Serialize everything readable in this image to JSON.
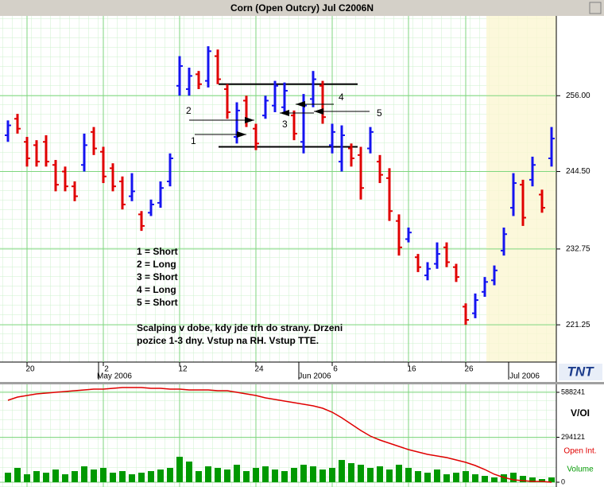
{
  "chart_data": [
    {
      "type": "ohlc",
      "title": "Corn (Open Outcry) Jul C2006N",
      "categories": [
        null,
        null,
        "20",
        null,
        null,
        null,
        null,
        null,
        null,
        null,
        "2",
        null,
        null,
        null,
        null,
        null,
        null,
        null,
        "12",
        null,
        null,
        null,
        null,
        null,
        null,
        null,
        "24",
        null,
        null,
        null,
        null,
        null,
        null,
        null,
        "6",
        null,
        null,
        null,
        null,
        null,
        null,
        null,
        "16",
        null,
        null,
        null,
        null,
        null,
        "26",
        null,
        null,
        null,
        null,
        null,
        null,
        null,
        null,
        null
      ],
      "months": [
        "May 2006",
        "Jun 2006",
        "Jul 2006"
      ],
      "open": [
        250,
        252.5,
        249,
        248.5,
        249,
        245.5,
        244.5,
        242.25,
        245.5,
        250.5,
        247.5,
        245,
        243,
        240.75,
        238,
        238.25,
        239.75,
        243,
        257.5,
        257,
        259.25,
        258.25,
        262,
        257,
        249.75,
        255.25,
        251,
        253,
        254.5,
        254.25,
        253,
        249,
        255.5,
        257.5,
        248.5,
        246,
        248,
        247,
        248,
        246,
        243.5,
        237,
        234.25,
        231.5,
        228.75,
        230.5,
        233,
        230,
        224,
        223,
        226.25,
        228,
        232.5,
        239,
        242.5,
        243.25,
        241,
        246.5
      ],
      "high": [
        252.25,
        253.25,
        249.75,
        249.25,
        250,
        246.25,
        245.25,
        243,
        250.25,
        251.25,
        248.25,
        245.75,
        243.75,
        244.25,
        238.5,
        240.25,
        243,
        247.25,
        262,
        260.25,
        259.75,
        263.5,
        263,
        257.75,
        255,
        256,
        251.75,
        256,
        258.25,
        258,
        253.75,
        256.25,
        259.75,
        258.25,
        251.75,
        251.5,
        248.75,
        248.25,
        251.25,
        247,
        245,
        238,
        236,
        232,
        230.75,
        233.75,
        233.75,
        230.5,
        224.5,
        226,
        228.5,
        230.25,
        236,
        244.25,
        243.25,
        246.75,
        241.75,
        251.25
      ],
      "low": [
        249,
        250.25,
        245.25,
        245.25,
        245.25,
        241.5,
        241.5,
        240,
        244.5,
        247,
        242.75,
        241.5,
        238.75,
        240,
        235.5,
        237.75,
        239,
        242.25,
        256,
        256,
        257,
        257.25,
        257.75,
        252.5,
        248.75,
        251.25,
        247.75,
        252.5,
        253.5,
        253.5,
        249.25,
        247.25,
        254.25,
        251.75,
        247.25,
        244.5,
        245.25,
        240.25,
        247.25,
        242.75,
        237,
        231.75,
        233.75,
        229.25,
        228,
        229.75,
        230,
        227.75,
        221.25,
        222.25,
        225.5,
        227.25,
        231.75,
        237.75,
        236.25,
        242.25,
        238.25,
        245.25
      ],
      "close": [
        251.5,
        251,
        246.5,
        246,
        246,
        242.5,
        242.25,
        240.75,
        248.5,
        248,
        243.75,
        242.25,
        239.5,
        241.5,
        236.25,
        239.5,
        242,
        246.5,
        260.5,
        259,
        257.75,
        262.75,
        258.5,
        253.5,
        253.75,
        252.25,
        248.75,
        255.25,
        257.5,
        256.75,
        250.25,
        254.5,
        258.5,
        252.75,
        250.5,
        250,
        246.5,
        242,
        250.5,
        244,
        238.5,
        233,
        235.25,
        230,
        229.75,
        232,
        230.75,
        228.5,
        222,
        225,
        227.75,
        229.5,
        235,
        242.75,
        237.5,
        245.5,
        239,
        249.5
      ],
      "up_color": "#1414f0",
      "down_color": "#e00000",
      "ylim": [
        215.6,
        268.1
      ],
      "yticks": [
        {
          "value": 221.25,
          "label": "221.25"
        },
        {
          "value": 232.75,
          "label": "232.75"
        },
        {
          "value": 244.5,
          "label": "244.50"
        },
        {
          "value": 256,
          "label": "256.00"
        }
      ],
      "grid": true,
      "levels": [
        257.75,
        248.25
      ],
      "arrow_labels": [
        "1",
        "2",
        "3",
        "4",
        "5"
      ],
      "notes": [
        "1 = Short",
        "2 = Long",
        "3 = Short",
        "4 = Long",
        "5 = Short"
      ],
      "comment": [
        "Scalping v dobe, kdy jde trh do strany. Drzeni",
        "pozice 1-3 dny. Vstup na RH. Vstup TTE."
      ],
      "logo": "TNT"
    },
    {
      "type": "bar",
      "title": "V/OI",
      "series": [
        {
          "name": "Open Int.",
          "color": "#e00000",
          "kind": "line",
          "values": [
            536100,
            556900,
            567300,
            577800,
            583000,
            588200,
            593400,
            598600,
            603800,
            609000,
            609000,
            614200,
            619400,
            619400,
            619400,
            614200,
            614200,
            609000,
            609000,
            603800,
            603800,
            603800,
            598600,
            598600,
            588200,
            577800,
            567300,
            551700,
            541300,
            530900,
            520500,
            510100,
            499700,
            484100,
            458000,
            421600,
            380000,
            338300,
            301900,
            275900,
            255000,
            234200,
            213400,
            197800,
            182200,
            171800,
            161400,
            145700,
            130100,
            109300,
            83300,
            52100,
            31200,
            15600,
            10400,
            5200,
            5200,
            0
          ]
        },
        {
          "name": "Volume",
          "color": "#009900",
          "kind": "bar",
          "values": [
            62400,
            93600,
            52000,
            72800,
            62400,
            83200,
            52000,
            72800,
            104000,
            83200,
            93600,
            62400,
            72800,
            52000,
            62400,
            72800,
            83200,
            93600,
            166400,
            135200,
            72800,
            104000,
            93600,
            83200,
            114400,
            72800,
            93600,
            104000,
            83200,
            72800,
            93600,
            114400,
            104000,
            83200,
            93600,
            145600,
            124800,
            114400,
            93600,
            104000,
            83200,
            114400,
            93600,
            72800,
            62400,
            83200,
            52000,
            62400,
            72800,
            52000,
            41600,
            31200,
            52000,
            62400,
            41600,
            31200,
            20800,
            31200
          ]
        }
      ],
      "ylim": [
        0,
        640300
      ],
      "yticks": [
        0,
        294121,
        588241
      ],
      "grid": true
    }
  ]
}
